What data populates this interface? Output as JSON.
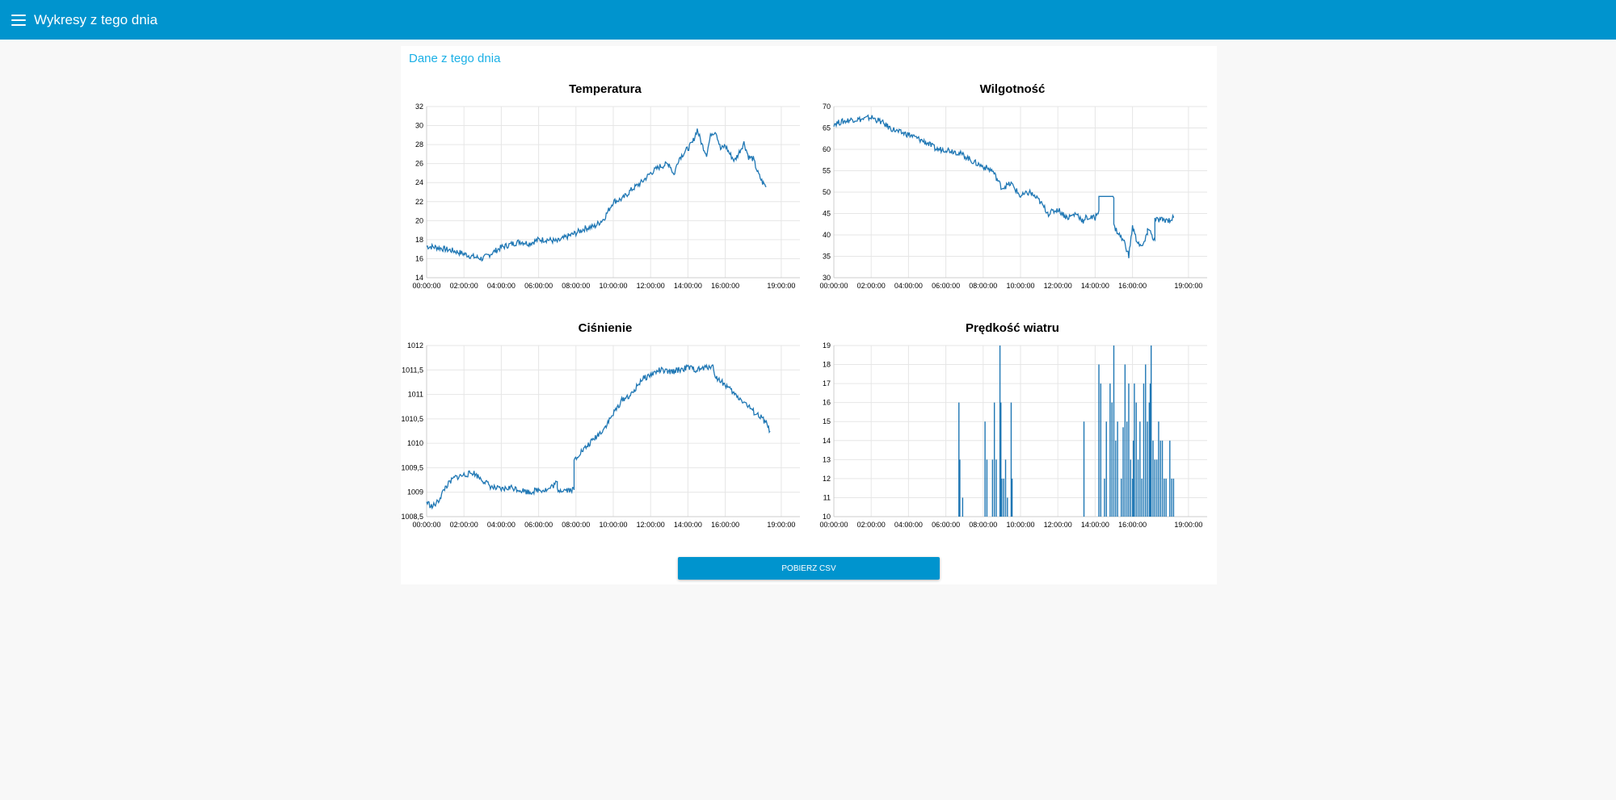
{
  "app": {
    "title": "Wykresy z tego dnia"
  },
  "section": {
    "title": "Dane z tego dnia"
  },
  "download": {
    "label": "POBIERZ CSV"
  },
  "colors": {
    "header": "#0094ce",
    "series": "#1f77b4",
    "accent": "#1bb0e6"
  },
  "chart_data": [
    {
      "id": "temperatura",
      "type": "line",
      "title": "Temperatura",
      "x_ticks": [
        "00:00:00",
        "02:00:00",
        "04:00:00",
        "06:00:00",
        "08:00:00",
        "10:00:00",
        "12:00:00",
        "14:00:00",
        "16:00:00",
        "19:00:00"
      ],
      "y_ticks": [
        "14",
        "16",
        "18",
        "20",
        "22",
        "24",
        "26",
        "28",
        "30",
        "32"
      ],
      "xlim": [
        0,
        20
      ],
      "ylim": [
        14,
        32
      ],
      "grid": true,
      "series": [
        {
          "x": [
            0,
            0.5,
            1,
            1.5,
            2,
            2.5,
            3,
            3.5,
            4,
            4.5,
            5,
            5.5,
            6,
            6.5,
            7,
            7.5,
            8,
            8.5,
            9,
            9.5,
            10,
            10.5,
            11,
            11.5,
            12,
            12.5,
            13,
            13.25,
            13.5,
            14,
            14.25,
            14.5,
            14.75,
            15,
            15.25,
            15.5,
            15.75,
            16,
            16.25,
            16.5,
            16.75,
            17,
            17.25,
            17.5,
            17.75,
            18,
            18.2
          ],
          "y": [
            17.3,
            17.2,
            17.0,
            16.8,
            16.5,
            16.2,
            16.0,
            16.6,
            17.2,
            17.5,
            17.8,
            17.6,
            18.0,
            18.0,
            17.8,
            18.3,
            18.7,
            19.2,
            19.4,
            20.2,
            22.0,
            22.3,
            23.3,
            24.0,
            25.0,
            25.7,
            26.0,
            24.8,
            26.5,
            27.6,
            28.2,
            29.6,
            28.0,
            27.0,
            29.2,
            29.4,
            27.5,
            27.9,
            27.0,
            26.3,
            27.2,
            28.2,
            26.7,
            26.5,
            25.0,
            24.0,
            23.6
          ]
        }
      ]
    },
    {
      "id": "wilgotnosc",
      "type": "line",
      "title": "Wilgotność",
      "x_ticks": [
        "00:00:00",
        "02:00:00",
        "04:00:00",
        "06:00:00",
        "08:00:00",
        "10:00:00",
        "12:00:00",
        "14:00:00",
        "16:00:00",
        "19:00:00"
      ],
      "y_ticks": [
        "30",
        "35",
        "40",
        "45",
        "50",
        "55",
        "60",
        "65",
        "70"
      ],
      "xlim": [
        0,
        20
      ],
      "ylim": [
        30,
        70
      ],
      "grid": true,
      "series": [
        {
          "x": [
            0,
            0.5,
            1,
            1.5,
            2,
            2.5,
            3,
            3.5,
            4,
            4.5,
            5,
            5.5,
            6,
            6.5,
            7,
            7.5,
            8,
            8.5,
            9,
            9.5,
            10,
            10.5,
            11,
            11.5,
            12,
            12.5,
            13,
            13.4,
            13.5,
            14,
            14.2,
            14.2,
            15,
            15,
            15.3,
            15.6,
            15.8,
            16,
            16.2,
            16.5,
            16.8,
            16.8,
            17.2,
            17.2,
            17.5,
            17.5,
            18,
            18.2,
            18.2
          ],
          "y": [
            66,
            66.5,
            67,
            67,
            67.5,
            66.5,
            65,
            64,
            63.5,
            62.5,
            61.5,
            60,
            60,
            59.5,
            58.5,
            57,
            56,
            55,
            51,
            52,
            49,
            50,
            48,
            45,
            46,
            44,
            45,
            43,
            44,
            44,
            46,
            49,
            49,
            42,
            40,
            38,
            35,
            42,
            39,
            37,
            40,
            42,
            38.5,
            43.5,
            43.5,
            43.5,
            43.5,
            44,
            44
          ]
        }
      ]
    },
    {
      "id": "cisnienie",
      "type": "line",
      "title": "Ciśnienie",
      "x_ticks": [
        "00:00:00",
        "02:00:00",
        "04:00:00",
        "06:00:00",
        "08:00:00",
        "10:00:00",
        "12:00:00",
        "14:00:00",
        "16:00:00",
        "19:00:00"
      ],
      "y_ticks": [
        "1008,5",
        "1009",
        "1009,5",
        "1010",
        "1010,5",
        "1011",
        "1011,5",
        "1012"
      ],
      "xlim": [
        0,
        20
      ],
      "ylim": [
        1008.5,
        1012
      ],
      "grid": true,
      "series": [
        {
          "x": [
            0,
            0.3,
            0.6,
            1,
            1.5,
            2,
            2.5,
            3,
            3.5,
            4,
            4.5,
            5,
            5.5,
            6,
            6.5,
            7,
            7,
            7.5,
            7.9,
            7.9,
            8.2,
            8.5,
            9,
            9.5,
            10,
            10.5,
            11,
            11.5,
            12,
            12.5,
            13,
            13.5,
            14,
            14.5,
            15,
            15.3,
            15.5,
            16,
            16.5,
            17,
            17.5,
            18,
            18.2,
            18.4
          ],
          "y": [
            1008.8,
            1008.7,
            1008.8,
            1009.1,
            1009.3,
            1009.35,
            1009.4,
            1009.25,
            1009.1,
            1009.05,
            1009.1,
            1009.05,
            1009.0,
            1009.05,
            1009.05,
            1009.2,
            1009.05,
            1009.05,
            1009.05,
            1009.65,
            1009.8,
            1009.9,
            1010.1,
            1010.3,
            1010.6,
            1010.9,
            1011.0,
            1011.3,
            1011.4,
            1011.5,
            1011.45,
            1011.5,
            1011.55,
            1011.5,
            1011.55,
            1011.6,
            1011.35,
            1011.2,
            1011.0,
            1010.85,
            1010.65,
            1010.5,
            1010.4,
            1010.25
          ]
        }
      ]
    },
    {
      "id": "predkosc-wiatru",
      "type": "bar",
      "title": "Prędkość wiatru",
      "x_ticks": [
        "00:00:00",
        "02:00:00",
        "04:00:00",
        "06:00:00",
        "08:00:00",
        "10:00:00",
        "12:00:00",
        "14:00:00",
        "16:00:00",
        "19:00:00"
      ],
      "y_ticks": [
        "10",
        "11",
        "12",
        "13",
        "14",
        "15",
        "16",
        "17",
        "18",
        "19"
      ],
      "xlim": [
        0,
        20
      ],
      "ylim": [
        10,
        19
      ],
      "grid": true,
      "series": [
        {
          "x": [
            6.7,
            6.75,
            6.9,
            8.1,
            8.2,
            8.5,
            8.6,
            8.7,
            8.9,
            8.95,
            9.0,
            9.1,
            9.2,
            9.3,
            9.5,
            9.55,
            13.4,
            14.2,
            14.3,
            14.5,
            14.6,
            14.8,
            14.9,
            15.0,
            15.1,
            15.2,
            15.4,
            15.5,
            15.6,
            15.7,
            15.8,
            15.9,
            16.0,
            16.05,
            16.1,
            16.2,
            16.3,
            16.4,
            16.5,
            16.6,
            16.7,
            16.8,
            16.9,
            16.95,
            17.0,
            17.1,
            17.2,
            17.3,
            17.4,
            17.5,
            17.6,
            17.7,
            17.8,
            18.0,
            18.1,
            18.2
          ],
          "y": [
            16,
            13,
            11,
            15,
            13,
            13,
            16,
            13,
            19,
            16,
            12,
            12,
            13,
            11,
            16,
            12,
            15,
            18,
            17,
            12,
            15,
            17,
            16,
            19,
            14,
            15,
            12,
            14.7,
            18,
            15,
            17,
            13,
            12,
            14,
            17,
            16,
            13,
            15,
            12,
            17,
            18,
            15,
            16,
            17,
            19,
            14,
            13,
            13,
            15,
            14,
            14,
            12,
            12,
            14,
            12,
            12
          ]
        }
      ]
    }
  ]
}
